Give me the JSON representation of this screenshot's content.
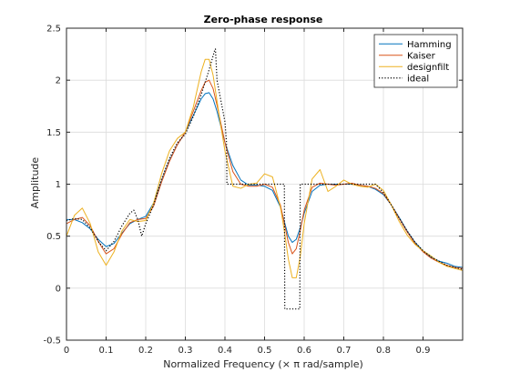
{
  "chart_data": {
    "type": "line",
    "title": "Zero-phase response",
    "xlabel": "Normalized Frequency (× π rad/sample)",
    "ylabel": "Amplitude",
    "xlim": [
      0,
      1
    ],
    "ylim": [
      -0.5,
      2.5
    ],
    "xticks": [
      0,
      0.1,
      0.2,
      0.3,
      0.4,
      0.5,
      0.6,
      0.7,
      0.8,
      0.9
    ],
    "xtick_labels": [
      "0",
      "0.1",
      "0.2",
      "0.3",
      "0.4",
      "0.5",
      "0.6",
      "0.7",
      "0.8",
      "0.9"
    ],
    "yticks": [
      -0.5,
      0,
      0.5,
      1,
      1.5,
      2,
      2.5
    ],
    "ytick_labels": [
      "-0.5",
      "0",
      "0.5",
      "1",
      "1.5",
      "2",
      "2.5"
    ],
    "grid": true,
    "legend_position": "top-right",
    "series": [
      {
        "name": "Hamming",
        "color": "#0072BD",
        "style": "solid",
        "x": [
          0,
          0.02,
          0.04,
          0.06,
          0.08,
          0.1,
          0.12,
          0.14,
          0.16,
          0.18,
          0.2,
          0.22,
          0.24,
          0.26,
          0.28,
          0.3,
          0.32,
          0.34,
          0.35,
          0.36,
          0.37,
          0.38,
          0.39,
          0.4,
          0.42,
          0.44,
          0.46,
          0.48,
          0.5,
          0.52,
          0.54,
          0.55,
          0.56,
          0.57,
          0.58,
          0.59,
          0.6,
          0.62,
          0.64,
          0.66,
          0.68,
          0.7,
          0.72,
          0.74,
          0.76,
          0.78,
          0.8,
          0.82,
          0.84,
          0.86,
          0.88,
          0.9,
          0.92,
          0.94,
          0.96,
          0.98,
          1.0
        ],
        "y": [
          0.66,
          0.66,
          0.63,
          0.57,
          0.47,
          0.4,
          0.43,
          0.53,
          0.62,
          0.66,
          0.69,
          0.82,
          1.03,
          1.23,
          1.38,
          1.5,
          1.66,
          1.82,
          1.87,
          1.88,
          1.82,
          1.7,
          1.55,
          1.4,
          1.18,
          1.04,
          0.99,
          0.99,
          0.98,
          0.94,
          0.78,
          0.64,
          0.5,
          0.44,
          0.47,
          0.58,
          0.72,
          0.93,
          0.99,
          1.0,
          1.0,
          1.0,
          1.0,
          0.99,
          0.98,
          0.95,
          0.9,
          0.8,
          0.68,
          0.55,
          0.44,
          0.36,
          0.3,
          0.26,
          0.24,
          0.21,
          0.2
        ]
      },
      {
        "name": "Kaiser",
        "color": "#D95319",
        "style": "solid",
        "x": [
          0,
          0.02,
          0.04,
          0.06,
          0.08,
          0.1,
          0.12,
          0.14,
          0.16,
          0.18,
          0.2,
          0.22,
          0.24,
          0.26,
          0.28,
          0.3,
          0.32,
          0.34,
          0.35,
          0.36,
          0.37,
          0.38,
          0.39,
          0.4,
          0.42,
          0.44,
          0.46,
          0.48,
          0.5,
          0.52,
          0.54,
          0.55,
          0.56,
          0.57,
          0.58,
          0.59,
          0.6,
          0.62,
          0.64,
          0.66,
          0.68,
          0.7,
          0.72,
          0.74,
          0.76,
          0.78,
          0.8,
          0.82,
          0.84,
          0.86,
          0.88,
          0.9,
          0.92,
          0.94,
          0.96,
          0.98,
          1.0
        ],
        "y": [
          0.62,
          0.66,
          0.68,
          0.6,
          0.45,
          0.33,
          0.38,
          0.52,
          0.63,
          0.66,
          0.67,
          0.79,
          1.02,
          1.22,
          1.38,
          1.5,
          1.7,
          1.9,
          1.98,
          2.0,
          1.92,
          1.76,
          1.58,
          1.4,
          1.12,
          1.0,
          0.98,
          0.98,
          1.0,
          0.97,
          0.8,
          0.62,
          0.44,
          0.33,
          0.38,
          0.55,
          0.75,
          0.97,
          1.01,
          1.0,
          0.99,
          1.0,
          1.01,
          0.99,
          0.98,
          0.96,
          0.91,
          0.8,
          0.67,
          0.54,
          0.43,
          0.35,
          0.29,
          0.25,
          0.22,
          0.2,
          0.19
        ]
      },
      {
        "name": "designfilt",
        "color": "#EDB120",
        "style": "solid",
        "x": [
          0,
          0.02,
          0.04,
          0.06,
          0.08,
          0.1,
          0.12,
          0.14,
          0.16,
          0.18,
          0.2,
          0.22,
          0.24,
          0.26,
          0.28,
          0.3,
          0.32,
          0.34,
          0.35,
          0.36,
          0.37,
          0.38,
          0.39,
          0.4,
          0.42,
          0.44,
          0.46,
          0.48,
          0.5,
          0.52,
          0.54,
          0.55,
          0.56,
          0.57,
          0.58,
          0.59,
          0.6,
          0.62,
          0.64,
          0.66,
          0.68,
          0.7,
          0.72,
          0.74,
          0.76,
          0.78,
          0.8,
          0.82,
          0.84,
          0.86,
          0.88,
          0.9,
          0.92,
          0.94,
          0.96,
          0.98,
          1.0
        ],
        "y": [
          0.5,
          0.7,
          0.77,
          0.62,
          0.35,
          0.22,
          0.35,
          0.55,
          0.66,
          0.64,
          0.65,
          0.82,
          1.1,
          1.32,
          1.44,
          1.5,
          1.74,
          2.08,
          2.2,
          2.2,
          2.05,
          1.8,
          1.55,
          1.32,
          0.98,
          0.96,
          1.0,
          1.01,
          1.1,
          1.07,
          0.78,
          0.55,
          0.28,
          0.1,
          0.1,
          0.3,
          0.62,
          1.05,
          1.14,
          0.93,
          0.98,
          1.04,
          1.0,
          0.98,
          0.97,
          1.0,
          0.94,
          0.8,
          0.64,
          0.51,
          0.42,
          0.36,
          0.31,
          0.25,
          0.21,
          0.19,
          0.17
        ]
      },
      {
        "name": "ideal",
        "color": "#000000",
        "style": "dotted",
        "x": [
          0,
          0.02,
          0.04,
          0.06,
          0.08,
          0.1,
          0.12,
          0.14,
          0.16,
          0.17,
          0.18,
          0.19,
          0.2,
          0.22,
          0.24,
          0.26,
          0.28,
          0.3,
          0.32,
          0.34,
          0.36,
          0.375,
          0.376,
          0.38,
          0.4,
          0.404,
          0.405,
          0.44,
          0.48,
          0.52,
          0.55,
          0.551,
          0.56,
          0.58,
          0.589,
          0.59,
          0.62,
          0.66,
          0.7,
          0.74,
          0.78,
          0.8,
          0.82,
          0.84,
          0.86,
          0.88,
          0.9,
          0.92,
          0.94,
          0.96,
          0.98,
          1.0
        ],
        "y": [
          0.65,
          0.67,
          0.66,
          0.58,
          0.45,
          0.36,
          0.45,
          0.6,
          0.72,
          0.75,
          0.66,
          0.5,
          0.62,
          0.8,
          1.05,
          1.25,
          1.4,
          1.48,
          1.65,
          1.86,
          2.1,
          2.3,
          2.3,
          2.0,
          1.6,
          1.4,
          1.0,
          1.0,
          1.0,
          1.0,
          1.0,
          -0.2,
          -0.2,
          -0.2,
          -0.2,
          1.0,
          1.0,
          1.0,
          1.0,
          1.0,
          1.0,
          0.92,
          0.8,
          0.67,
          0.55,
          0.44,
          0.36,
          0.3,
          0.26,
          0.22,
          0.2,
          0.18
        ]
      }
    ]
  }
}
